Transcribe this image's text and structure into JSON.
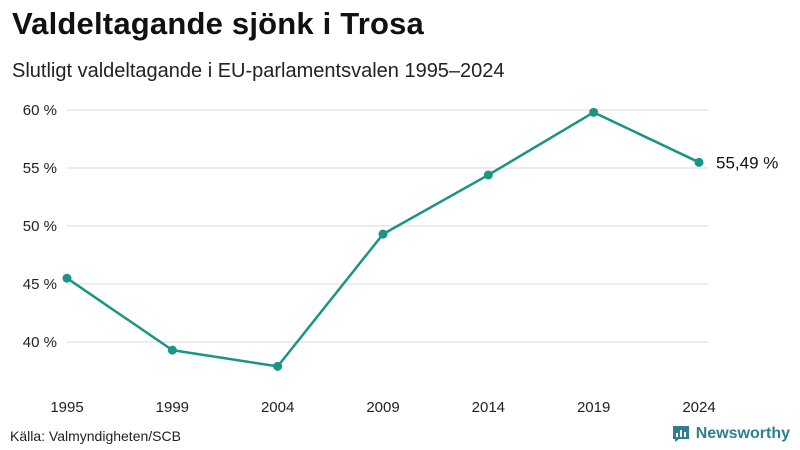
{
  "header": {
    "title": "Valdeltagande sjönk i Trosa",
    "subtitle": "Slutligt valdeltagande i EU-parlamentsvalen 1995–2024"
  },
  "footer": {
    "source": "Källa: Valmyndigheten/SCB",
    "brand": "Newsworthy"
  },
  "colors": {
    "line": "#1a9484",
    "grid": "#d9d9d9",
    "brand": "#2f7f8c"
  },
  "chart_data": {
    "type": "line",
    "title": "Valdeltagande sjönk i Trosa",
    "subtitle": "Slutligt valdeltagande i EU-parlamentsvalen 1995–2024",
    "xlabel": "",
    "ylabel": "",
    "x": [
      "1995",
      "1999",
      "2004",
      "2009",
      "2014",
      "2019",
      "2024"
    ],
    "series": [
      {
        "name": "Trosa",
        "values": [
          45.5,
          39.3,
          37.9,
          49.3,
          54.4,
          59.8,
          55.49
        ]
      }
    ],
    "ylim": [
      37,
      61
    ],
    "yticks": [
      40,
      45,
      50,
      55,
      60
    ],
    "ytick_labels": [
      "40 %",
      "45 %",
      "50 %",
      "55 %",
      "60 %"
    ],
    "grid": true,
    "end_label": "55,49 %"
  }
}
